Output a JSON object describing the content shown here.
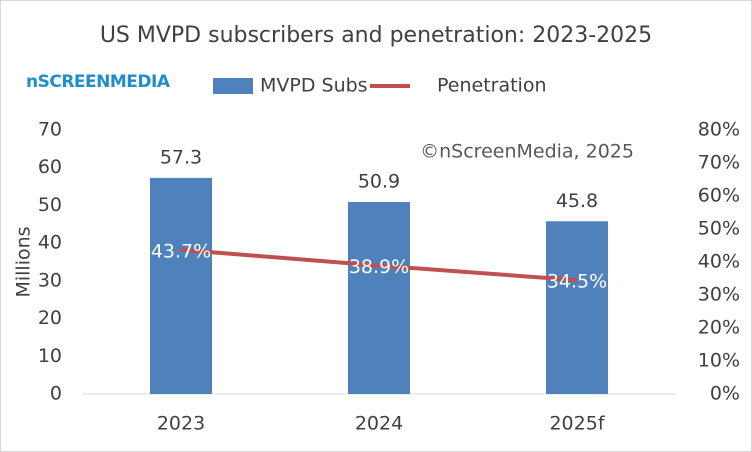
{
  "chart_data": {
    "type": "bar",
    "title": "US MVPD subscribers and penetration: 2023-2025",
    "logo": "nSCREENMEDIA",
    "annotation": "©nScreenMedia, 2025",
    "ylabel": "Millions",
    "categories": [
      "2023",
      "2024",
      "2025f"
    ],
    "series": [
      {
        "name": "MVPD Subs",
        "type": "bar",
        "color": "#4f81bd",
        "values": [
          57.3,
          50.9,
          45.8
        ]
      },
      {
        "name": "Penetration",
        "type": "line",
        "axis": "y2",
        "color": "#c0504d",
        "values": [
          43.7,
          38.9,
          34.5
        ],
        "value_labels": [
          "43.7%",
          "38.9%",
          "34.5%"
        ]
      }
    ],
    "ylim": [
      0,
      70
    ],
    "yticks": [
      0,
      10,
      20,
      30,
      40,
      50,
      60,
      70
    ],
    "y2lim": [
      0,
      80
    ],
    "y2ticks": [
      {
        "value": 0,
        "label": "0%"
      },
      {
        "value": 10,
        "label": "10%"
      },
      {
        "value": 20,
        "label": "20%"
      },
      {
        "value": 30,
        "label": "30%"
      },
      {
        "value": 40,
        "label": "40%"
      },
      {
        "value": 50,
        "label": "50%"
      },
      {
        "value": 60,
        "label": "60%"
      },
      {
        "value": 70,
        "label": "70%"
      },
      {
        "value": 80,
        "label": "80%"
      }
    ],
    "grid": false,
    "legend": "top"
  }
}
